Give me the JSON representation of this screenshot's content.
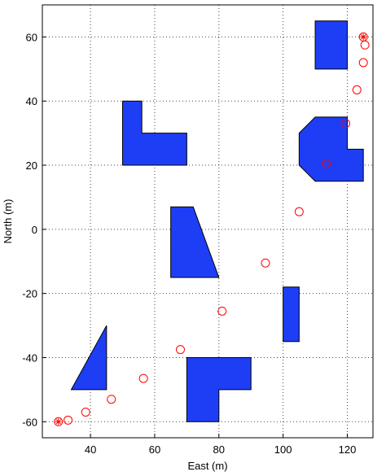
{
  "chart_data": {
    "type": "path-map",
    "xlabel": "East (m)",
    "ylabel": "North (m)",
    "xlim": [
      25,
      128
    ],
    "ylim": [
      -65,
      70
    ],
    "xticks": [
      40,
      60,
      80,
      100,
      120
    ],
    "yticks": [
      -60,
      -40,
      -20,
      0,
      20,
      40,
      60
    ],
    "grid": true,
    "obstacle_color": "#1e3ef5",
    "obstacles": [
      {
        "x": [
          110,
          120,
          120,
          110
        ],
        "y": [
          65,
          65,
          50,
          50
        ]
      },
      {
        "x": [
          50,
          56,
          56,
          70,
          70,
          50
        ],
        "y": [
          40,
          40,
          30,
          30,
          20,
          20
        ]
      },
      {
        "x": [
          110,
          120,
          120,
          125,
          125,
          110,
          105,
          105
        ],
        "y": [
          35,
          35,
          25,
          25,
          15,
          15,
          20,
          30
        ]
      },
      {
        "x": [
          65,
          72,
          80,
          65
        ],
        "y": [
          7,
          7,
          -15,
          -15
        ]
      },
      {
        "x": [
          100,
          105,
          105,
          100
        ],
        "y": [
          -18,
          -18,
          -35,
          -35
        ]
      },
      {
        "x": [
          45,
          45,
          34
        ],
        "y": [
          -30,
          -50,
          -50
        ]
      },
      {
        "x": [
          70,
          90,
          90,
          80,
          80,
          70
        ],
        "y": [
          -40,
          -40,
          -50,
          -50,
          -60,
          -60
        ]
      }
    ],
    "path": {
      "color": "#ff0000",
      "endpoint_marker": "asterisk",
      "x": [
        30,
        33,
        38.5,
        46.5,
        56.5,
        68,
        81,
        94.5,
        105,
        113.5,
        119.5,
        123,
        125,
        125.5,
        125
      ],
      "y": [
        -60,
        -59.5,
        -57,
        -53,
        -46.5,
        -37.5,
        -25.5,
        -10.5,
        5.5,
        20.5,
        33,
        43.5,
        52,
        57.5,
        60
      ]
    }
  }
}
